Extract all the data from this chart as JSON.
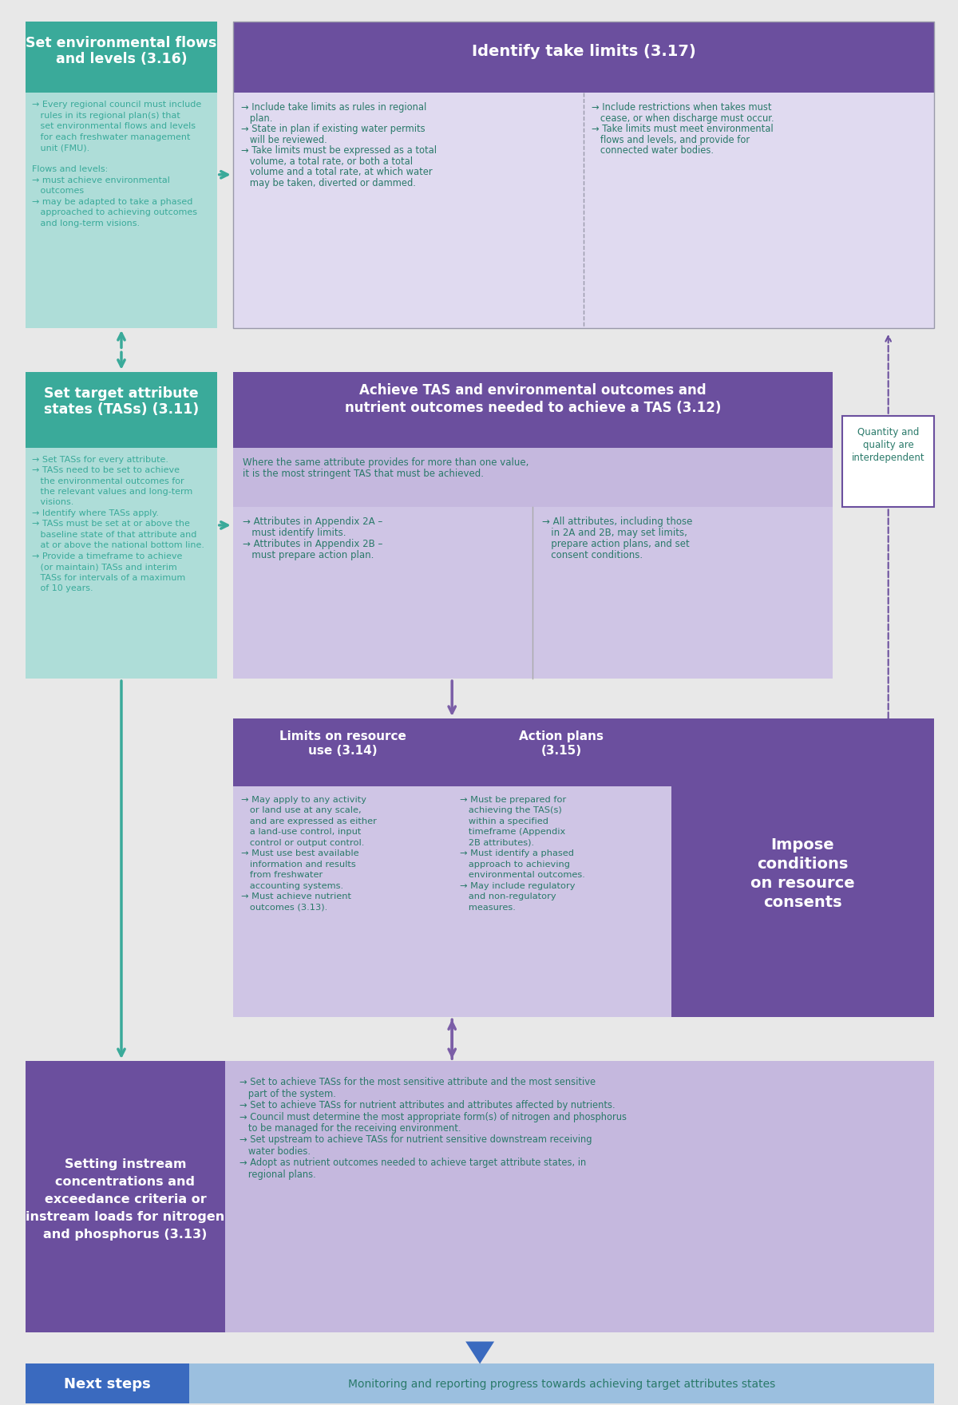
{
  "bg_color": "#f5f5f5",
  "teal_dark": "#3aaa9a",
  "teal_light": "#7ecfc0",
  "teal_box_bg": "#aeddd8",
  "purple_dark": "#6b4f9e",
  "purple_mid": "#8b6bb5",
  "purple_light": "#c5b8de",
  "purple_lightest": "#ddd5ed",
  "lavender_light": "#cfc5e5",
  "lavender_content": "#e0daf0",
  "arrow_teal": "#3aaa9a",
  "arrow_purple": "#7b5ea7",
  "text_teal_dark": "#2a7a6a",
  "text_purple_dark": "#4a2d7a",
  "text_white": "#ffffff",
  "next_steps_blue": "#3a6abf",
  "next_steps_light": "#9bbfdf",
  "outer_bg": "#e8e8e8",
  "box1_title_lines": [
    "Set environmental flows",
    "and levels (3.16)"
  ],
  "box1_body_lines": [
    "→ Every regional council must include",
    "   rules in its regional plan(s) that",
    "   set environmental flows and levels",
    "   for each freshwater management",
    "   unit (FMU).",
    "",
    "Flows and levels:",
    "→ must achieve environmental",
    "   outcomes",
    "→ may be adapted to take a phased",
    "   approached to achieving outcomes",
    "   and long-term visions."
  ],
  "box2_title_lines": [
    "Identify take limits (3.17)"
  ],
  "box2_col1_lines": [
    "→ Include take limits as rules in regional",
    "   plan.",
    "→ State in plan if existing water permits",
    "   will be reviewed.",
    "→ Take limits must be expressed as a total",
    "   volume, a total rate, or both a total",
    "   volume and a total rate, at which water",
    "   may be taken, diverted or dammed."
  ],
  "box2_col2_lines": [
    "→ Include restrictions when takes must",
    "   cease, or when discharge must occur.",
    "→ Take limits must meet environmental",
    "   flows and levels, and provide for",
    "   connected water bodies."
  ],
  "box3_title_lines": [
    "Set target attribute",
    "states (TASs) (3.11)"
  ],
  "box3_body_lines": [
    "→ Set TASs for every attribute.",
    "→ TASs need to be set to achieve",
    "   the environmental outcomes for",
    "   the relevant values and long-term",
    "   visions.",
    "→ Identify where TASs apply.",
    "→ TASs must be set at or above the",
    "   baseline state of that attribute and",
    "   at or above the national bottom line.",
    "→ Provide a timeframe to achieve",
    "   (or maintain) TASs and interim",
    "   TASs for intervals of a maximum",
    "   of 10 years."
  ],
  "box4_title_lines": [
    "Achieve TAS and environmental outcomes and",
    "nutrient outcomes needed to achieve a TAS (3.12)"
  ],
  "box4_subtitle_lines": [
    "Where the same attribute provides for more than one value,",
    "it is the most stringent TAS that must be achieved."
  ],
  "box4_col1_lines": [
    "→ Attributes in Appendix 2A –",
    "   must identify limits.",
    "→ Attributes in Appendix 2B –",
    "   must prepare action plan."
  ],
  "box4_col2_lines": [
    "→ All attributes, including those",
    "   in 2A and 2B, may set limits,",
    "   prepare action plans, and set",
    "   consent conditions."
  ],
  "box5_title_lines": [
    "Limits on resource",
    "use (3.14)"
  ],
  "box5_body_lines": [
    "→ May apply to any activity",
    "   or land use at any scale,",
    "   and are expressed as either",
    "   a land-use control, input",
    "   control or output control.",
    "→ Must use best available",
    "   information and results",
    "   from freshwater",
    "   accounting systems.",
    "→ Must achieve nutrient",
    "   outcomes (3.13)."
  ],
  "box6_title_lines": [
    "Action plans",
    "(3.15)"
  ],
  "box6_body_lines": [
    "→ Must be prepared for",
    "   achieving the TAS(s)",
    "   within a specified",
    "   timeframe (Appendix",
    "   2B attributes).",
    "→ Must identify a phased",
    "   approach to achieving",
    "   environmental outcomes.",
    "→ May include regulatory",
    "   and non-regulatory",
    "   measures."
  ],
  "box7_title_lines": [
    "Impose",
    "conditions",
    "on resource",
    "consents"
  ],
  "box8_title_lines": [
    "Setting instream",
    "concentrations and",
    "exceedance criteria or",
    "instream loads for nitrogen",
    "and phosphorus (3.13)"
  ],
  "box8_body_lines": [
    "→ Set to achieve TASs for the most sensitive attribute and the most sensitive",
    "   part of the system.",
    "→ Set to achieve TASs for nutrient attributes and attributes affected by nutrients.",
    "→ Council must determine the most appropriate form(s) of nitrogen and phosphorus",
    "   to be managed for the receiving environment.",
    "→ Set upstream to achieve TASs for nutrient sensitive downstream receiving",
    "   water bodies.",
    "→ Adopt as nutrient outcomes needed to achieve target attribute states, in",
    "   regional plans."
  ],
  "box_qty_lines": [
    "Quantity and",
    "quality are",
    "interdependent"
  ],
  "next_left": "Next steps",
  "next_right": "Monitoring and reporting progress towards achieving target attributes states"
}
